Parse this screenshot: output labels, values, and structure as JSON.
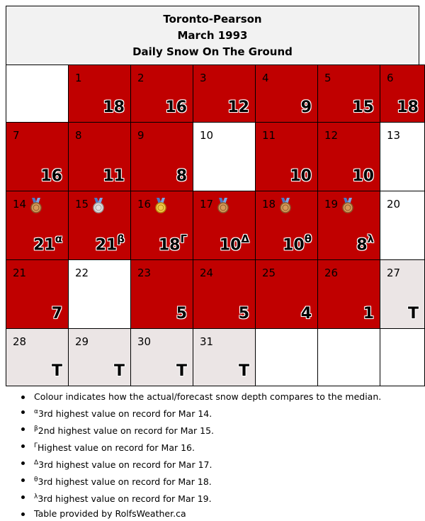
{
  "header": {
    "station": "Toronto-Pearson",
    "month": "March 1993",
    "subtitle": "Daily Snow On The Ground"
  },
  "legend_colors": {
    "above_median": "#c00000",
    "trace": "#ebe5e5",
    "blank": "#ffffff"
  },
  "weeks": [
    [
      {
        "day": "",
        "value": "",
        "color": "blank"
      },
      {
        "day": "1",
        "value": "18",
        "color": "red"
      },
      {
        "day": "2",
        "value": "16",
        "color": "red"
      },
      {
        "day": "3",
        "value": "12",
        "color": "red"
      },
      {
        "day": "4",
        "value": "9",
        "color": "red"
      },
      {
        "day": "5",
        "value": "15",
        "color": "red"
      },
      {
        "day": "6",
        "value": "18",
        "color": "red"
      }
    ],
    [
      {
        "day": "7",
        "value": "16",
        "color": "red"
      },
      {
        "day": "8",
        "value": "11",
        "color": "red"
      },
      {
        "day": "9",
        "value": "8",
        "color": "red"
      },
      {
        "day": "10",
        "value": "",
        "color": "blank"
      },
      {
        "day": "11",
        "value": "10",
        "color": "red"
      },
      {
        "day": "12",
        "value": "10",
        "color": "red"
      },
      {
        "day": "13",
        "value": "",
        "color": "blank"
      }
    ],
    [
      {
        "day": "14",
        "value": "21",
        "sup": "α",
        "medal": "bronze-medal-icon",
        "color": "red"
      },
      {
        "day": "15",
        "value": "21",
        "sup": "β",
        "medal": "silver-medal-icon",
        "color": "red"
      },
      {
        "day": "16",
        "value": "18",
        "sup": "Γ",
        "medal": "gold-medal-icon",
        "color": "red"
      },
      {
        "day": "17",
        "value": "10",
        "sup": "Δ",
        "medal": "bronze-medal-icon",
        "color": "red"
      },
      {
        "day": "18",
        "value": "10",
        "sup": "θ",
        "medal": "bronze-medal-icon",
        "color": "red"
      },
      {
        "day": "19",
        "value": "8",
        "sup": "λ",
        "medal": "bronze-medal-icon",
        "color": "red"
      },
      {
        "day": "20",
        "value": "",
        "color": "blank"
      }
    ],
    [
      {
        "day": "21",
        "value": "7",
        "color": "red"
      },
      {
        "day": "22",
        "value": "",
        "color": "blank"
      },
      {
        "day": "23",
        "value": "5",
        "color": "red"
      },
      {
        "day": "24",
        "value": "5",
        "color": "red"
      },
      {
        "day": "25",
        "value": "4",
        "color": "red"
      },
      {
        "day": "26",
        "value": "1",
        "color": "red"
      },
      {
        "day": "27",
        "value": "T",
        "color": "trace"
      }
    ],
    [
      {
        "day": "28",
        "value": "T",
        "color": "trace"
      },
      {
        "day": "29",
        "value": "T",
        "color": "trace"
      },
      {
        "day": "30",
        "value": "T",
        "color": "trace"
      },
      {
        "day": "31",
        "value": "T",
        "color": "trace"
      },
      {
        "day": "",
        "value": "",
        "color": "blank"
      },
      {
        "day": "",
        "value": "",
        "color": "blank"
      },
      {
        "day": "",
        "value": "",
        "color": "blank"
      }
    ]
  ],
  "notes": [
    {
      "sup": "",
      "text": "Colour indicates how the actual/forecast snow depth compares to the median."
    },
    {
      "sup": "α",
      "text": "3rd highest value on record for Mar 14."
    },
    {
      "sup": "β",
      "text": "2nd highest value on record for Mar 15."
    },
    {
      "sup": "Γ",
      "text": "Highest value on record for Mar 16."
    },
    {
      "sup": "Δ",
      "text": "3rd highest value on record for Mar 17."
    },
    {
      "sup": "θ",
      "text": "3rd highest value on record for Mar 18."
    },
    {
      "sup": "λ",
      "text": "3rd highest value on record for Mar 19."
    },
    {
      "sup": "",
      "text": "Table provided by RolfsWeather.ca"
    }
  ]
}
